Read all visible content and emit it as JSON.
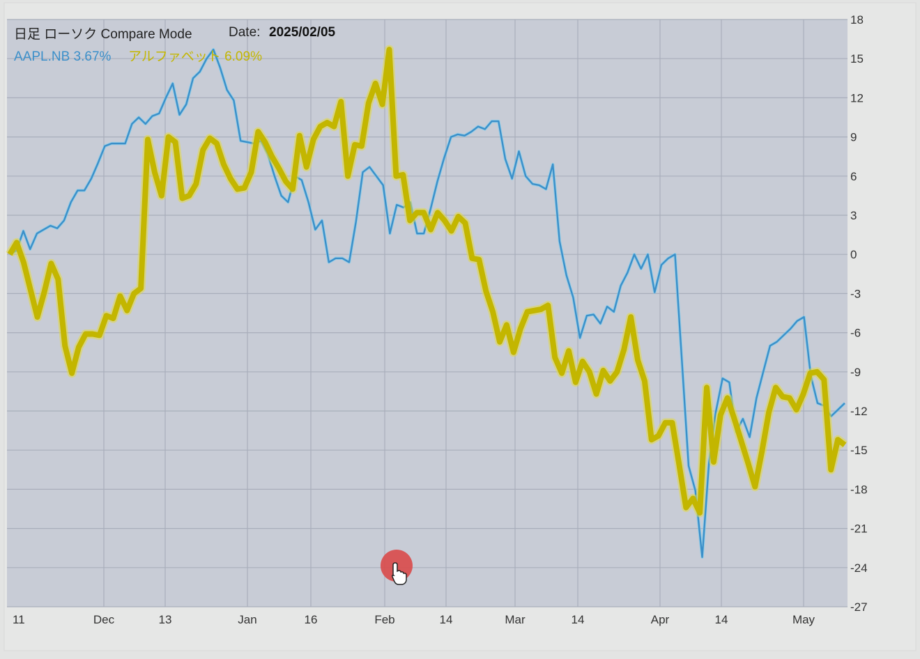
{
  "header": {
    "title": "日足 ローソク Compare Mode",
    "date_label": "Date:",
    "date_value": "2025/02/05"
  },
  "legend": {
    "items": [
      {
        "label": "AAPL.NB 3.67%",
        "color": "#3b8fc9"
      },
      {
        "label": "アルファベット 6.09%",
        "color": "#c3b600"
      }
    ]
  },
  "cursor": {
    "icon": "hand-pointer-icon",
    "marker_color": "#d94a4a"
  },
  "chart_data": {
    "type": "line",
    "x_tick_labels": [
      "11",
      "Dec",
      "13",
      "Jan",
      "16",
      "Feb",
      "14",
      "Mar",
      "14",
      "Apr",
      "14",
      "May"
    ],
    "y_tick_labels": [
      "18",
      "15",
      "12",
      "9",
      "6",
      "3",
      "0",
      "-3",
      "-6",
      "-9",
      "-12",
      "-15",
      "-18",
      "-21",
      "-24",
      "-27"
    ],
    "ylim": [
      -27,
      18
    ],
    "y_axis_position": "right",
    "grid": true,
    "series": [
      {
        "name": "AAPL.NB",
        "color": "#3b8fc9",
        "values": [
          0,
          0.3,
          1.8,
          0.4,
          1.6,
          1.9,
          2.2,
          2,
          2.6,
          4,
          4.9,
          4.9,
          5.8,
          7,
          8.3,
          8.5,
          8.5,
          8.5,
          10,
          10.5,
          10,
          10.6,
          10.8,
          12,
          13.1,
          10.7,
          11.5,
          13.5,
          14,
          15,
          15.7,
          14.3,
          12.6,
          11.8,
          8.7,
          8.6,
          8.5,
          8.7,
          7.7,
          6,
          4.5,
          4,
          6,
          5.7,
          4,
          1.9,
          2.6,
          -0.6,
          -0.3,
          -0.3,
          -0.6,
          2.5,
          6.3,
          6.7,
          6,
          5.3,
          1.6,
          3.8,
          3.6,
          4,
          1.6,
          1.6,
          3.5,
          5.6,
          7.4,
          9,
          9.2,
          9.1,
          9.4,
          9.8,
          9.6,
          10.2,
          10.2,
          7.3,
          5.8,
          7.9,
          6,
          5.4,
          5.3,
          5,
          6.9,
          1,
          -1.6,
          -3.3,
          -6.4,
          -4.7,
          -4.6,
          -5.3,
          -4,
          -4.4,
          -2.4,
          -1.4,
          0,
          -1.1,
          0,
          -2.9,
          -0.8,
          -0.3,
          0,
          -8,
          -16.2,
          -18.1,
          -23.2,
          -16,
          -12.1,
          -9.5,
          -9.8,
          -13.6,
          -12.6,
          -14,
          -11,
          -9,
          -7,
          -6.7,
          -6.2,
          -5.7,
          -5.1,
          -4.8,
          -9.3,
          -11.4,
          -11.6,
          -12.4,
          -11.9,
          -11.4
        ]
      },
      {
        "name": "アルファベット",
        "color": "#c3b600",
        "values": [
          0,
          0.9,
          -0.6,
          -2.7,
          -4.8,
          -2.9,
          -0.7,
          -1.9,
          -7,
          -9.1,
          -7.1,
          -6.1,
          -6.1,
          -6.2,
          -4.7,
          -4.9,
          -3.2,
          -4.3,
          -3,
          -2.6,
          8.8,
          6.3,
          4.5,
          9,
          8.6,
          4.3,
          4.5,
          5.4,
          8,
          8.9,
          8.5,
          6.9,
          5.8,
          5,
          5.1,
          6.3,
          9.4,
          8.6,
          7.5,
          6.6,
          5.6,
          5,
          9.1,
          6.7,
          8.8,
          9.8,
          10.1,
          9.8,
          11.7,
          6,
          8.4,
          8.3,
          11.6,
          13.1,
          11.5,
          15.7,
          6,
          6.1,
          2.6,
          3.2,
          3.2,
          1.9,
          3.2,
          2.6,
          1.8,
          2.9,
          2.4,
          -0.3,
          -0.4,
          -2.8,
          -4.4,
          -6.7,
          -5.4,
          -7.5,
          -5.7,
          -4.4,
          -4.3,
          -4.2,
          -3.9,
          -7.9,
          -9.1,
          -7.4,
          -9.8,
          -8.2,
          -9,
          -10.7,
          -8.9,
          -9.7,
          -9,
          -7.3,
          -4.8,
          -8.1,
          -9.7,
          -14.2,
          -13.9,
          -12.9,
          -12.9,
          -16.1,
          -19.4,
          -18.7,
          -19.8,
          -10.2,
          -15.9,
          -12.3,
          -11,
          -12.6,
          -14.3,
          -16,
          -17.8,
          -15.1,
          -12.1,
          -10.2,
          -10.9,
          -11,
          -11.9,
          -10.7,
          -9.1,
          -9,
          -9.6,
          -16.5,
          -14.2,
          -14.6
        ]
      }
    ]
  }
}
